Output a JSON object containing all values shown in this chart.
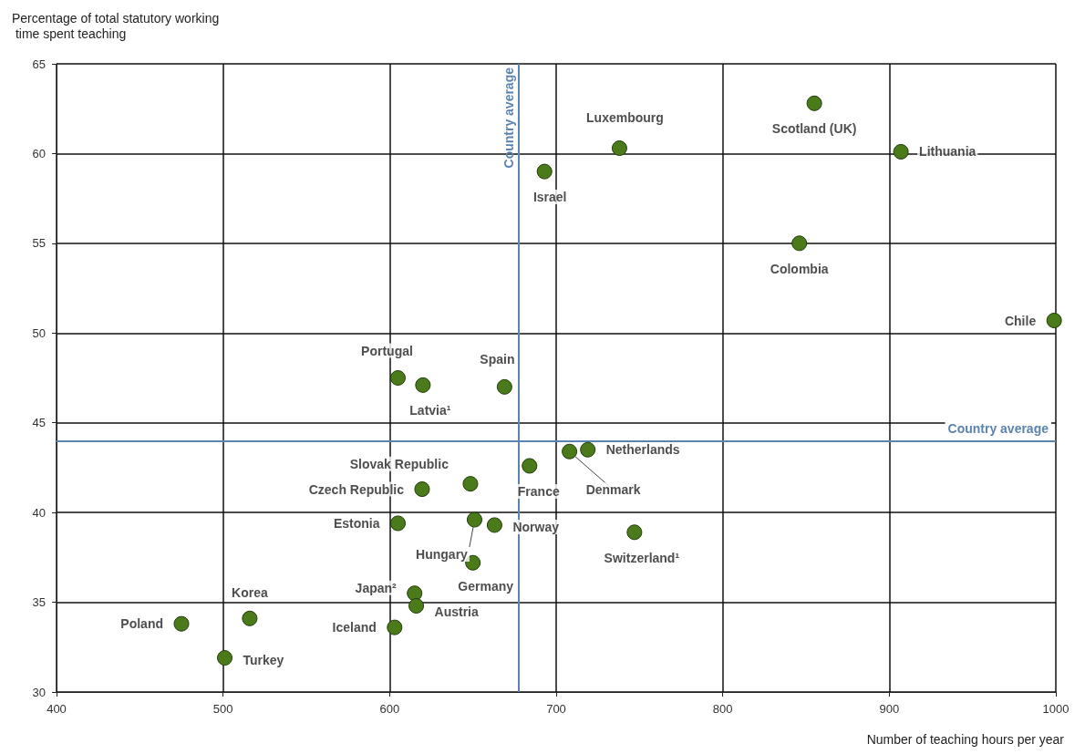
{
  "chart_data": {
    "type": "scatter",
    "ylabel": "Percentage of total statutory working time spent teaching",
    "xlabel": "Number of teaching hours per year",
    "x": [
      475,
      516,
      501,
      605,
      620,
      669,
      648.5,
      619.5,
      605,
      651,
      663,
      650,
      615,
      616,
      603,
      684,
      708,
      719,
      747,
      693,
      738,
      855,
      907,
      846,
      999
    ],
    "values": [
      33.8,
      34.1,
      31.9,
      47.5,
      47.1,
      47.0,
      41.6,
      41.3,
      39.4,
      39.6,
      39.3,
      37.2,
      35.5,
      34.8,
      33.6,
      42.6,
      43.4,
      43.5,
      38.9,
      59.0,
      60.3,
      62.8,
      60.1,
      55.0,
      50.7
    ],
    "color": "#4a7a1a",
    "marker": "circle",
    "annotations": [
      {
        "text": "Poland",
        "x": 475,
        "y": 33.8
      },
      {
        "text": "Korea",
        "x": 516,
        "y": 34.1
      },
      {
        "text": "Turkey",
        "x": 501,
        "y": 31.9
      },
      {
        "text": "Portugal",
        "x": 605,
        "y": 47.5
      },
      {
        "text": "Latvia¹",
        "x": 620,
        "y": 47.1
      },
      {
        "text": "Spain",
        "x": 669,
        "y": 47.0
      },
      {
        "text": "Slovak Republic",
        "x": 648.5,
        "y": 41.6
      },
      {
        "text": "Czech Republic",
        "x": 619.5,
        "y": 41.3
      },
      {
        "text": "Estonia",
        "x": 605,
        "y": 39.4
      },
      {
        "text": "Hungary",
        "x": 651,
        "y": 39.6
      },
      {
        "text": "Norway",
        "x": 663,
        "y": 39.3
      },
      {
        "text": "Germany",
        "x": 650,
        "y": 37.2
      },
      {
        "text": "Japan²",
        "x": 615,
        "y": 35.5
      },
      {
        "text": "Austria",
        "x": 616,
        "y": 34.8
      },
      {
        "text": "Iceland",
        "x": 603,
        "y": 33.6
      },
      {
        "text": "France",
        "x": 684,
        "y": 42.6
      },
      {
        "text": "Denmark",
        "x": 708,
        "y": 43.4
      },
      {
        "text": "Netherlands",
        "x": 719,
        "y": 43.5
      },
      {
        "text": "Switzerland¹",
        "x": 747,
        "y": 38.9
      },
      {
        "text": "Israel",
        "x": 693,
        "y": 59.0
      },
      {
        "text": "Luxembourg",
        "x": 738,
        "y": 60.3
      },
      {
        "text": "Scotland (UK)",
        "x": 855,
        "y": 62.8
      },
      {
        "text": "Lithuania",
        "x": 907,
        "y": 60.1
      },
      {
        "text": "Colombia",
        "x": 846,
        "y": 55.0
      },
      {
        "text": "Chile",
        "x": 999,
        "y": 50.7
      }
    ],
    "ref_lines": [
      {
        "axis": "x",
        "value": 677.5,
        "label": "Country average",
        "color": "#5b84b1"
      },
      {
        "axis": "y",
        "value": 44.0,
        "label": "Country average",
        "color": "#5b84b1"
      }
    ],
    "xlim": [
      400,
      1000
    ],
    "xticks": [
      400,
      500,
      600,
      700,
      800,
      900,
      1000
    ],
    "ylim": [
      30,
      65
    ],
    "yticks": [
      30,
      35,
      40,
      45,
      50,
      55,
      60,
      65
    ],
    "grid": true
  }
}
